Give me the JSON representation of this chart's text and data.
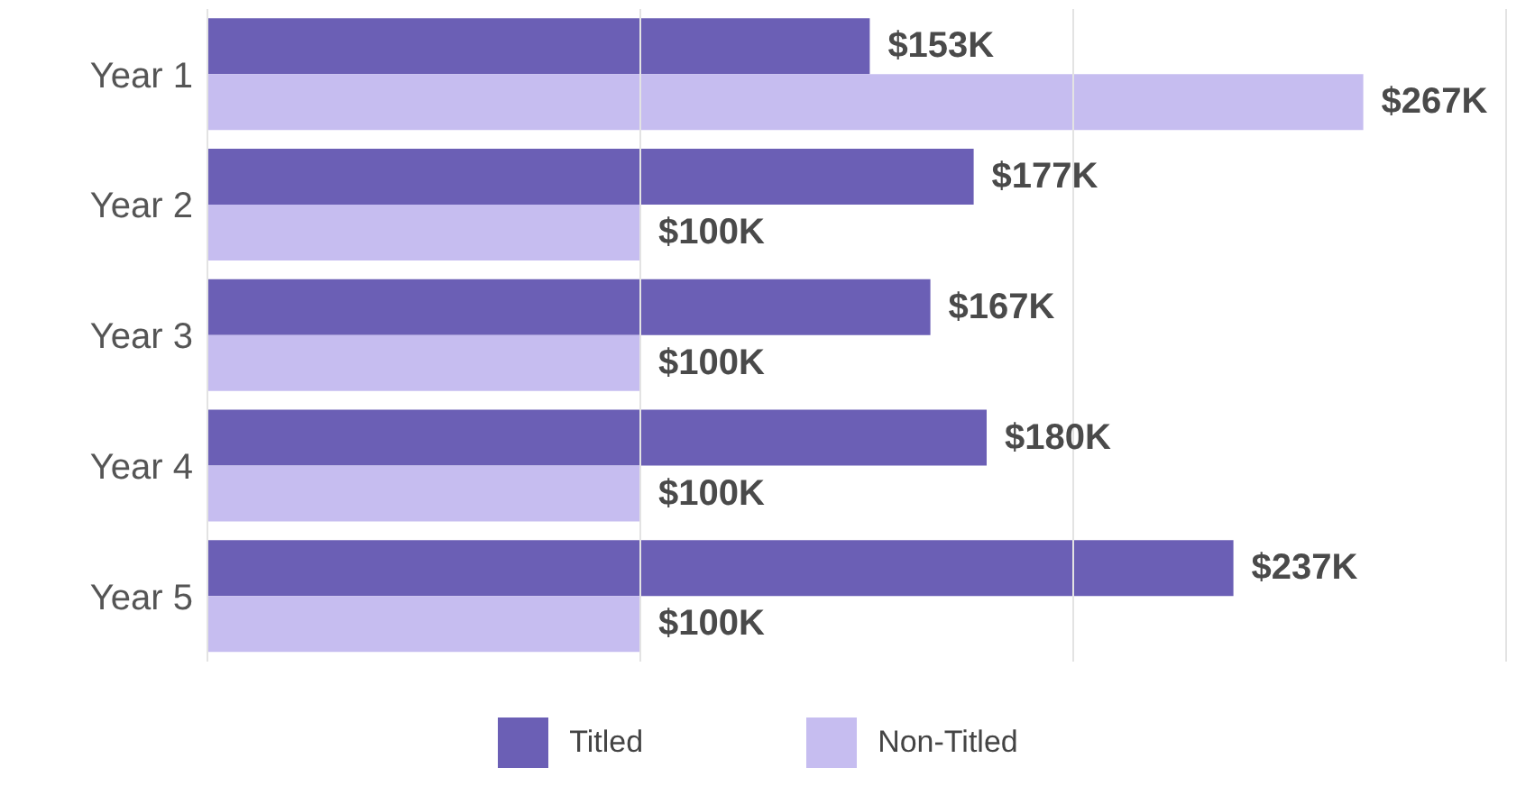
{
  "chart_data": {
    "type": "bar",
    "orientation": "horizontal",
    "categories": [
      "Year 1",
      "Year 2",
      "Year 3",
      "Year 4",
      "Year 5"
    ],
    "series": [
      {
        "name": "Titled",
        "color": "#6b5fb5",
        "values": [
          153,
          177,
          167,
          180,
          237
        ],
        "value_labels": [
          "$153K",
          "$177K",
          "$167K",
          "$180K",
          "$237K"
        ]
      },
      {
        "name": "Non-Titled",
        "color": "#c6bdf0",
        "values": [
          267,
          100,
          100,
          100,
          100
        ],
        "value_labels": [
          "$267K",
          "$100K",
          "$100K",
          "$100K",
          "$100K"
        ]
      }
    ],
    "xlim": [
      0,
      300
    ],
    "xticks": [
      {
        "value": 0,
        "label": null
      },
      {
        "value": 100,
        "label": null
      },
      {
        "value": 200,
        "label": null
      },
      {
        "value": 300,
        "label": null
      }
    ],
    "tick_labels": "y",
    "grid": "x",
    "legend": "bottom"
  }
}
